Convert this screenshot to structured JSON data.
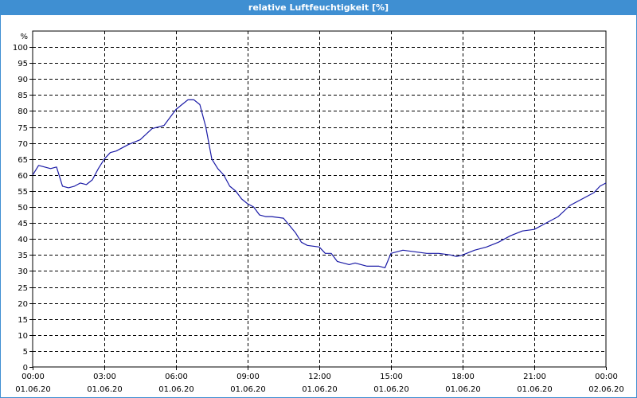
{
  "window": {
    "title": "relative Luftfeuchtigkeit [%]"
  },
  "chart_data": {
    "type": "line",
    "title": "relative Luftfeuchtigkeit [%]",
    "ylabel": "%",
    "xlabel": "",
    "ylim": [
      0,
      105
    ],
    "yticks": [
      0,
      5,
      10,
      15,
      20,
      25,
      30,
      35,
      40,
      45,
      50,
      55,
      60,
      65,
      70,
      75,
      80,
      85,
      90,
      95,
      100
    ],
    "xlim": [
      "2020-06-01 00:00",
      "2020-06-02 00:00"
    ],
    "xticks": [
      {
        "time": "00:00",
        "date": "01.06.20"
      },
      {
        "time": "03:00",
        "date": "01.06.20"
      },
      {
        "time": "06:00",
        "date": "01.06.20"
      },
      {
        "time": "09:00",
        "date": "01.06.20"
      },
      {
        "time": "12:00",
        "date": "01.06.20"
      },
      {
        "time": "15:00",
        "date": "01.06.20"
      },
      {
        "time": "18:00",
        "date": "01.06.20"
      },
      {
        "time": "21:00",
        "date": "01.06.20"
      },
      {
        "time": "00:00",
        "date": "02.06.20"
      }
    ],
    "grid": true,
    "series": [
      {
        "color": "#1a1aa6",
        "x": [
          "00:00",
          "00:15",
          "00:30",
          "00:45",
          "01:00",
          "01:15",
          "01:30",
          "01:45",
          "02:00",
          "02:15",
          "02:30",
          "02:45",
          "03:00",
          "03:15",
          "03:30",
          "04:00",
          "04:30",
          "05:00",
          "05:30",
          "06:00",
          "06:15",
          "06:30",
          "06:45",
          "07:00",
          "07:15",
          "07:30",
          "07:45",
          "08:00",
          "08:15",
          "08:30",
          "08:45",
          "09:00",
          "09:15",
          "09:30",
          "09:45",
          "10:00",
          "10:30",
          "11:00",
          "11:15",
          "11:30",
          "12:00",
          "12:15",
          "12:30",
          "12:45",
          "13:00",
          "13:15",
          "13:30",
          "14:00",
          "14:30",
          "14:45",
          "15:00",
          "15:30",
          "16:00",
          "16:30",
          "17:00",
          "17:30",
          "17:45",
          "18:00",
          "18:30",
          "19:00",
          "19:30",
          "20:00",
          "20:30",
          "21:00",
          "21:30",
          "22:00",
          "22:30",
          "23:00",
          "23:30",
          "23:45",
          "24:00"
        ],
        "values": [
          60,
          63,
          62.5,
          62,
          62.5,
          56.5,
          56,
          56.5,
          57.5,
          57,
          58.5,
          62,
          65,
          67,
          67.5,
          69.5,
          71,
          74.5,
          75.5,
          80.5,
          82,
          83.5,
          83.5,
          82,
          75,
          65,
          62,
          60,
          56.5,
          55,
          52.5,
          51,
          50,
          47.5,
          47,
          47,
          46.5,
          42,
          39,
          38,
          37.5,
          35.5,
          35.5,
          33,
          32.5,
          32,
          32.5,
          31.5,
          31.5,
          31,
          35.5,
          36.5,
          36,
          35.5,
          35.5,
          35,
          34.5,
          35,
          36.5,
          37.5,
          39,
          41,
          42.5,
          43,
          45,
          47,
          50.5,
          52.5,
          54.5,
          56.5,
          57.5
        ]
      }
    ]
  }
}
